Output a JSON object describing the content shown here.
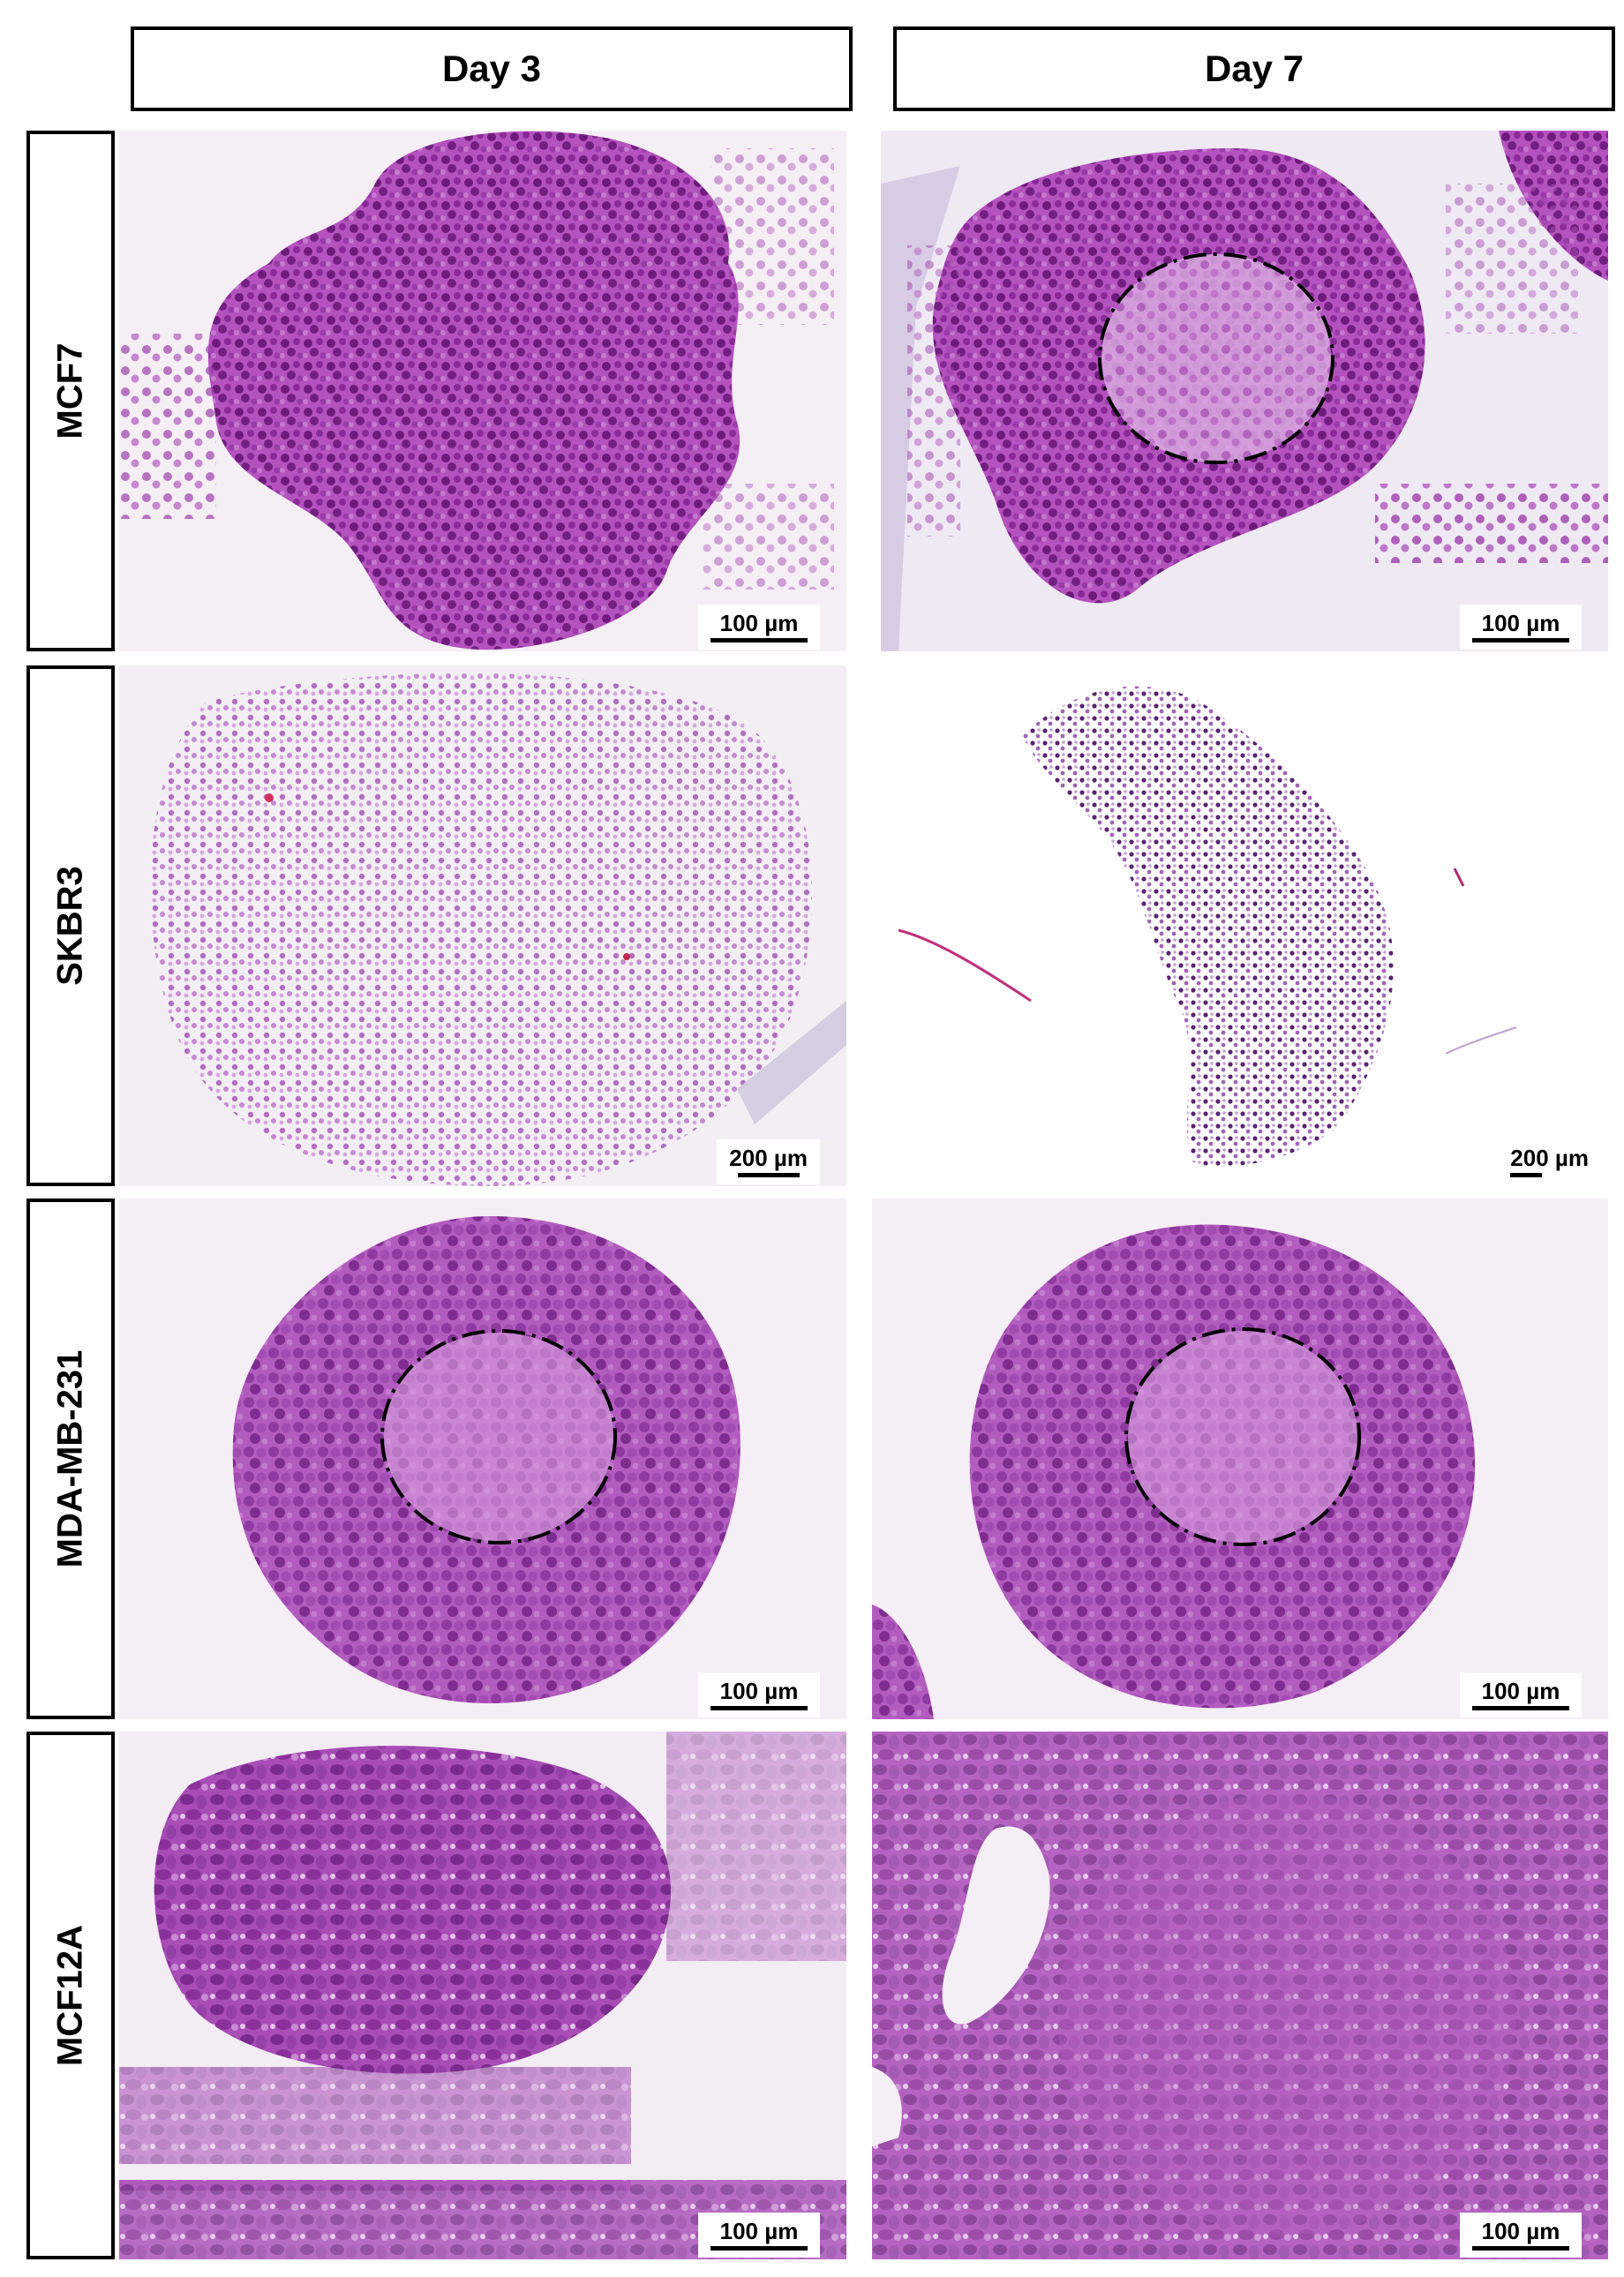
{
  "columns": [
    {
      "label": "Day 3"
    },
    {
      "label": "Day 7"
    }
  ],
  "rows": [
    {
      "label": "MCF7"
    },
    {
      "label": "SKBR3"
    },
    {
      "label": "MDA-MB-231"
    },
    {
      "label": "MCF12A"
    }
  ],
  "scale_bars": {
    "mcf7_day3": "100 µm",
    "mcf7_day7": "100 µm",
    "skbr3_day3": "200 µm",
    "skbr3_day7": "200 µm",
    "mda_day3": "100 µm",
    "mda_day7": "100 µm",
    "mcf12a_day3": "100 µm",
    "mcf12a_day7": "100 µm"
  },
  "colors": {
    "stain_dark": "#7a1f86",
    "stain_mid": "#a63fb0",
    "stain_light": "#c98ad4",
    "eosin_pink": "#d48fd6",
    "background": "#f6eef6",
    "circle_annotation": "#000000"
  }
}
